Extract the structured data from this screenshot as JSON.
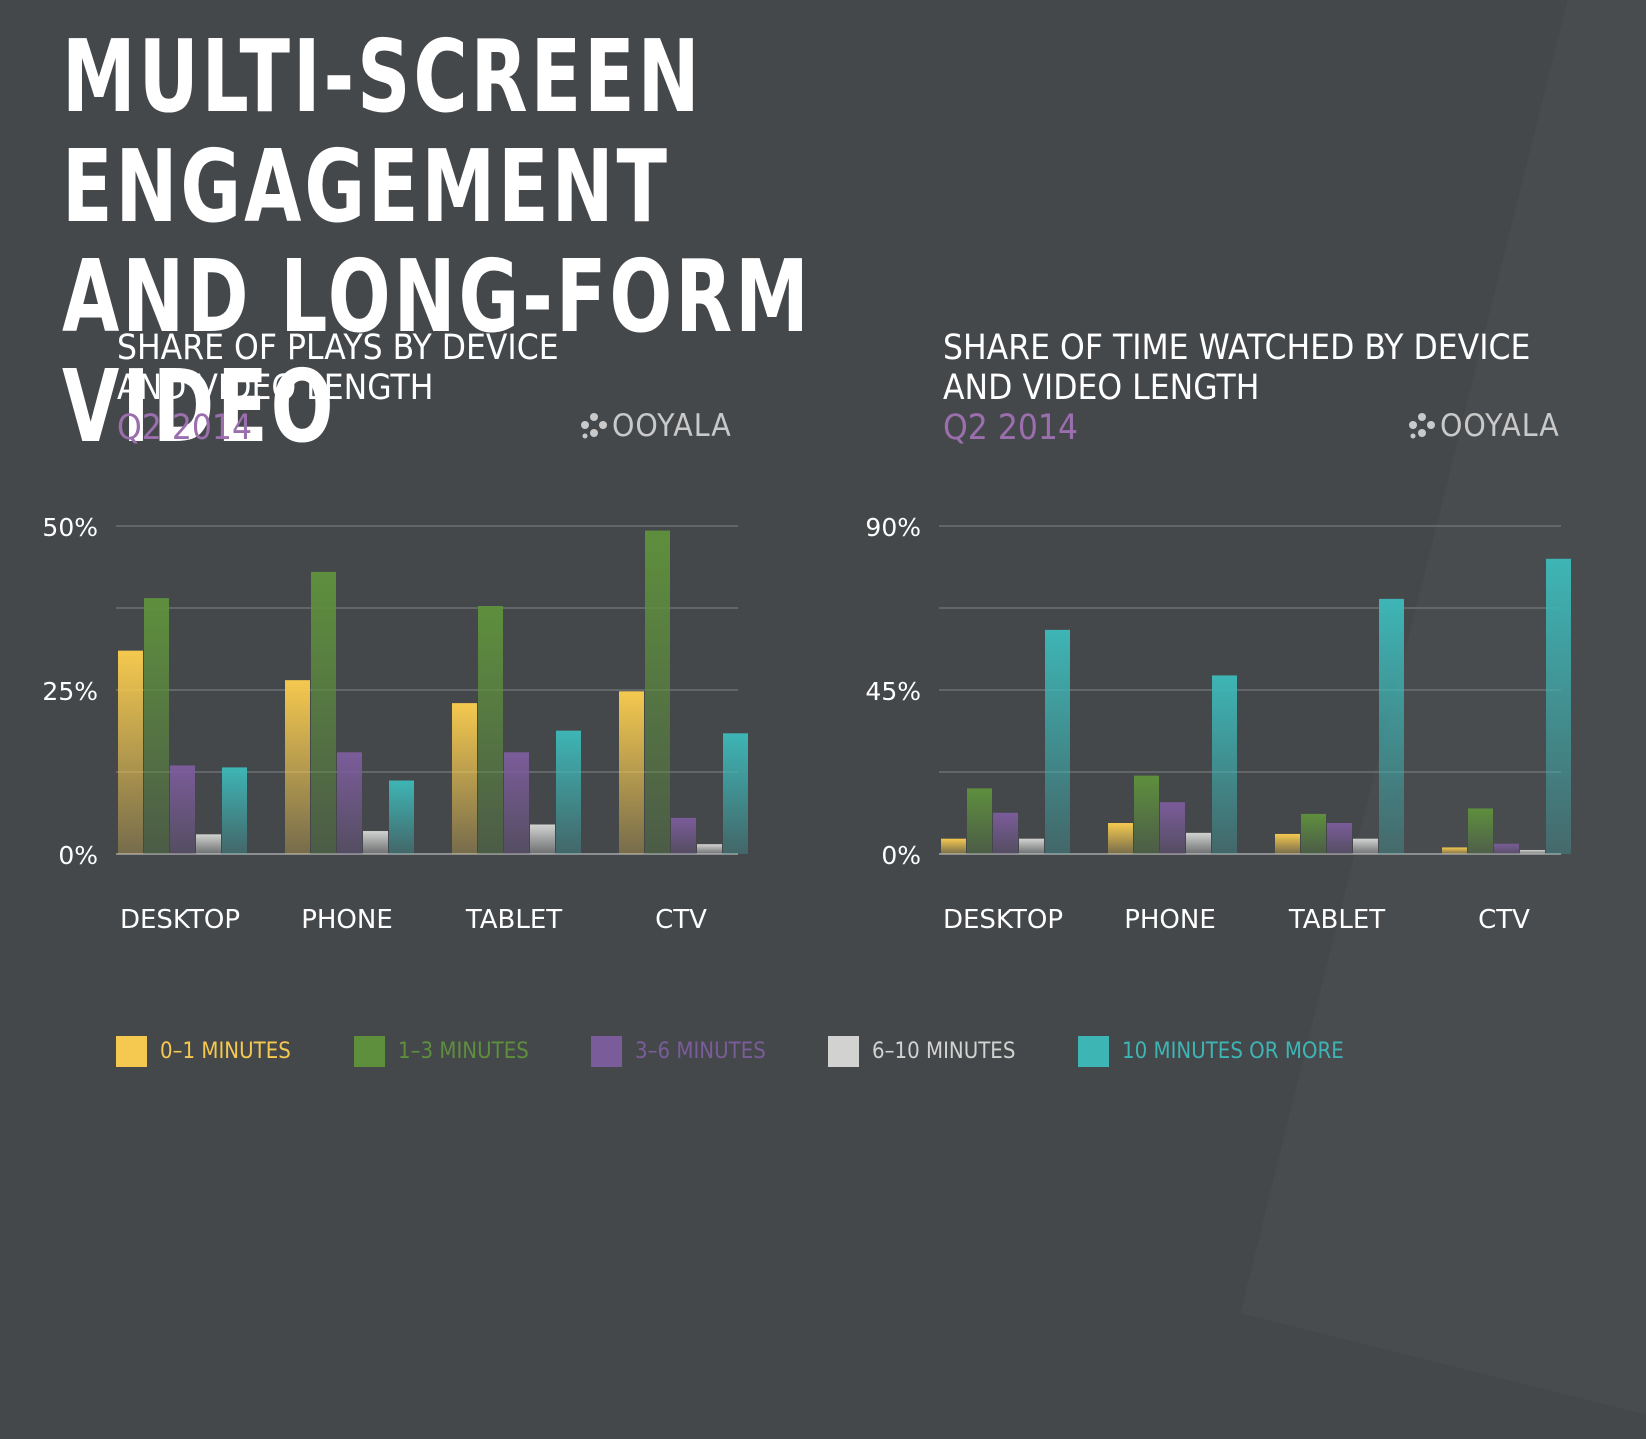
{
  "title": {
    "line1": "MULTI-SCREEN ENGAGEMENT",
    "line2": "AND LONG-FORM VIDEO"
  },
  "logo": {
    "text": "OOYALA",
    "icon": "ooyala-dots-icon"
  },
  "legend": [
    {
      "label": "0–1 MINUTES",
      "color": "#f5c94f"
    },
    {
      "label": "1–3 MINUTES",
      "color": "#5e8f3d"
    },
    {
      "label": "3–6 MINUTES",
      "color": "#7b5c9a"
    },
    {
      "label": "6–10 MINUTES",
      "color": "#d2d3d1"
    },
    {
      "label": "10 MINUTES OR MORE",
      "color": "#3eb5b5"
    }
  ],
  "chart_data": [
    {
      "type": "bar",
      "title_line1": "SHARE OF PLAYS BY DEVICE",
      "title_line2": "AND VIDEO LENGTH",
      "subtitle": "Q2 2014",
      "categories": [
        "DESKTOP",
        "PHONE",
        "TABLET",
        "CTV"
      ],
      "ylim": [
        0,
        50
      ],
      "yticks": [
        0,
        25,
        50
      ],
      "ytick_labels": [
        "0%",
        "25%",
        "50%"
      ],
      "grid": true,
      "series": [
        {
          "name": "0–1 MINUTES",
          "values": [
            31,
            26.5,
            23,
            24.8
          ]
        },
        {
          "name": "1–3 MINUTES",
          "values": [
            39,
            43,
            37.8,
            49.3
          ]
        },
        {
          "name": "3–6 MINUTES",
          "values": [
            13.5,
            15.5,
            15.5,
            5.5
          ]
        },
        {
          "name": "6–10 MINUTES",
          "values": [
            3,
            3.5,
            4.5,
            1.5
          ]
        },
        {
          "name": "10 MINUTES OR MORE",
          "values": [
            13.2,
            11.2,
            18.8,
            18.4
          ]
        }
      ]
    },
    {
      "type": "bar",
      "title_line1": "SHARE OF TIME WATCHED BY DEVICE",
      "title_line2": "AND VIDEO LENGTH",
      "subtitle": "Q2 2014",
      "categories": [
        "DESKTOP",
        "PHONE",
        "TABLET",
        "CTV"
      ],
      "ylim": [
        0,
        90
      ],
      "yticks": [
        0,
        45,
        90
      ],
      "ytick_labels": [
        "0%",
        "45%",
        "90%"
      ],
      "grid": true,
      "series": [
        {
          "name": "0–1 MINUTES",
          "values": [
            4.2,
            8.5,
            5.5,
            1.8
          ]
        },
        {
          "name": "1–3 MINUTES",
          "values": [
            18,
            21.5,
            11,
            12.5
          ]
        },
        {
          "name": "3–6 MINUTES",
          "values": [
            11.3,
            14.2,
            8.5,
            2.8
          ]
        },
        {
          "name": "6–10 MINUTES",
          "values": [
            4.2,
            5.8,
            4.2,
            1.1
          ]
        },
        {
          "name": "10 MINUTES OR MORE",
          "values": [
            61.5,
            49,
            70,
            81
          ]
        }
      ]
    }
  ]
}
